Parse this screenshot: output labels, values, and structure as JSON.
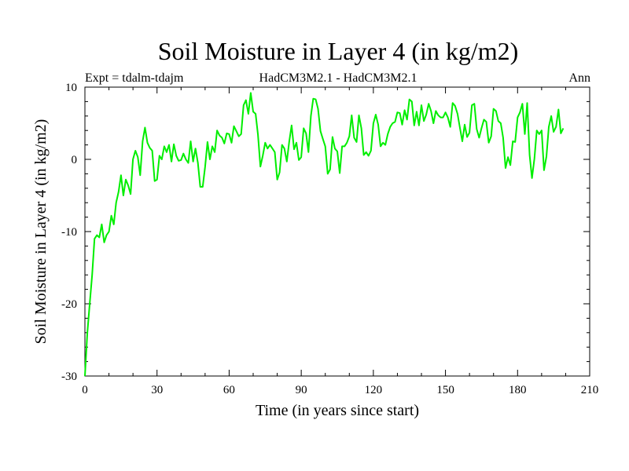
{
  "chart_data": {
    "type": "line",
    "title": "Soil Moisture in Layer 4 (in kg/m2)",
    "subtitle_left": "Expt = tdalm-tdajm",
    "subtitle_center": "HadCM3M2.1 - HadCM3M2.1",
    "subtitle_right": "Ann",
    "xlabel": "Time (in years since start)",
    "ylabel": "Soil Moisture in Layer 4 (in kg/m2)",
    "xlim": [
      0,
      210
    ],
    "ylim": [
      -30,
      10
    ],
    "xticks": [
      0,
      30,
      60,
      90,
      120,
      150,
      180,
      210
    ],
    "yticks": [
      -30,
      -20,
      -10,
      0,
      10
    ],
    "line_color": "#00ee00",
    "series": [
      {
        "x": [
          0,
          1,
          2,
          3,
          4,
          5,
          6,
          7,
          8,
          9,
          10,
          11,
          12,
          13,
          14,
          15,
          16,
          17,
          18,
          19,
          20,
          21,
          22,
          23,
          24,
          25,
          26,
          27,
          28,
          29,
          30,
          31,
          32,
          33,
          34,
          35,
          36,
          37,
          38,
          39,
          40,
          41,
          42,
          43,
          44,
          45,
          46,
          47,
          48,
          49,
          50,
          51,
          52,
          53,
          54,
          55,
          56,
          57,
          58,
          59,
          60,
          61,
          62,
          63,
          64,
          65,
          66,
          67,
          68,
          69,
          70,
          71,
          72,
          73,
          74,
          75,
          76,
          77,
          78,
          79,
          80,
          81,
          82,
          83,
          84,
          85,
          86,
          87,
          88,
          89,
          90,
          91,
          92,
          93,
          94,
          95,
          96,
          97,
          98,
          99,
          100,
          101,
          102,
          103,
          104,
          105,
          106,
          107,
          108,
          109,
          110,
          111,
          112,
          113,
          114,
          115,
          116,
          117,
          118,
          119,
          120,
          121,
          122,
          123,
          124,
          125,
          126,
          127,
          128,
          129,
          130,
          131,
          132,
          133,
          134,
          135,
          136,
          137,
          138,
          139,
          140,
          141,
          142,
          143,
          144,
          145,
          146,
          147,
          148,
          149,
          150,
          151,
          152,
          153,
          154,
          155,
          156,
          157,
          158,
          159,
          160,
          161,
          162,
          163,
          164,
          165,
          166,
          167,
          168,
          169,
          170,
          171,
          172,
          173,
          174,
          175,
          176,
          177,
          178,
          179,
          180,
          181,
          182,
          183,
          184,
          185,
          186,
          187,
          188,
          189,
          190,
          191,
          192,
          193,
          194,
          195,
          196,
          197,
          198,
          199
        ],
        "y": [
          -30,
          -24,
          -20,
          -16,
          -11,
          -10.5,
          -10.8,
          -9,
          -11.5,
          -10.5,
          -10,
          -7.8,
          -9,
          -6,
          -4.5,
          -2.2,
          -5,
          -2.8,
          -3.6,
          -4.8,
          0,
          1.2,
          0.3,
          -2.2,
          2.5,
          4.4,
          2.3,
          1.6,
          1.2,
          -3,
          -2.8,
          0.5,
          0,
          1.8,
          1,
          2,
          -0.3,
          2.1,
          0.5,
          -0.2,
          -0.1,
          0.8,
          0,
          -0.5,
          2.5,
          -0.3,
          1.5,
          -0.5,
          -3.8,
          -3.8,
          -1,
          2.4,
          0,
          1.8,
          1,
          4,
          3.3,
          3,
          2.2,
          3.6,
          3.5,
          2.3,
          4.6,
          3.9,
          3.2,
          3.5,
          7.5,
          8.2,
          6.3,
          9.2,
          6.6,
          6.3,
          3.4,
          -1,
          0.5,
          2.3,
          1.5,
          2,
          1.5,
          1,
          -2.8,
          -1.8,
          2,
          1.5,
          -0.3,
          2.5,
          4.7,
          1.4,
          2.3,
          -0.1,
          0.3,
          4.3,
          3.6,
          1,
          6,
          8.4,
          8.3,
          7,
          3.9,
          2.8,
          1.8,
          -2,
          -1.4,
          3.1,
          1.5,
          1.1,
          -1.9,
          1.8,
          1.8,
          2.3,
          3.2,
          6.1,
          3,
          2.4,
          6.1,
          4.3,
          0.6,
          1,
          0.5,
          1.2,
          5,
          6.2,
          4.8,
          1.8,
          2.3,
          2,
          3.5,
          4.5,
          5,
          5.2,
          6.5,
          6.4,
          4.8,
          6.8,
          5.5,
          8.3,
          8,
          4.7,
          6.6,
          4.7,
          7.5,
          5.3,
          6.2,
          7.7,
          6.7,
          5,
          6.7,
          6.1,
          5.8,
          5.8,
          6.5,
          5.8,
          4.5,
          7.8,
          7.4,
          6.3,
          4.4,
          2.5,
          4.8,
          3.1,
          3.7,
          7.5,
          7.7,
          4.2,
          3,
          4.3,
          5.5,
          5.2,
          2.3,
          3.2,
          7,
          6.7,
          5.3,
          5,
          3,
          -1.2,
          0.3,
          -0.8,
          2.5,
          2.4,
          5.8,
          6.5,
          7.7,
          3.5,
          7.8,
          0.6,
          -2.6,
          0.1,
          4,
          3.5,
          4,
          -1.5,
          0.4,
          4.5,
          6,
          3.8,
          4.5,
          6.9,
          3.6,
          4.3
        ]
      }
    ]
  }
}
